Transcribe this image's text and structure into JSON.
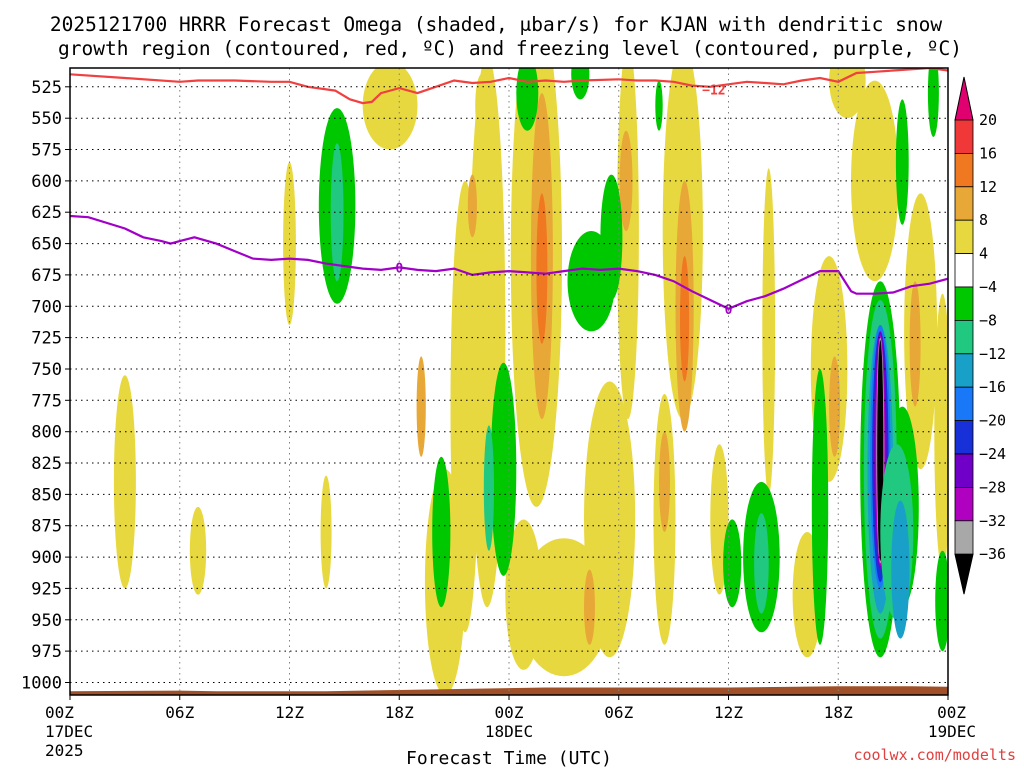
{
  "chart_data": {
    "type": "heatmap",
    "title_lines": [
      "2025121700 HRRR Forecast Omega (shaded, μbar/s) for KJAN with dendritic snow",
      "growth region (contoured, red, ºC) and freezing level (contoured, purple, ºC)"
    ],
    "xlabel": "Forecast Time (UTC)",
    "credit": "coolwx.com/modelts",
    "y_axis": {
      "units": "hPa",
      "reversed": true,
      "range": [
        510,
        1010
      ],
      "ticks": [
        525,
        550,
        575,
        600,
        625,
        650,
        675,
        700,
        725,
        750,
        775,
        800,
        825,
        850,
        875,
        900,
        925,
        950,
        975,
        1000
      ]
    },
    "x_axis": {
      "units": "forecast hour",
      "range": [
        0,
        48
      ],
      "ticks": [
        {
          "hour": 0,
          "label": "00Z",
          "date": "17DEC",
          "year": "2025"
        },
        {
          "hour": 6,
          "label": "06Z"
        },
        {
          "hour": 12,
          "label": "12Z"
        },
        {
          "hour": 18,
          "label": "18Z"
        },
        {
          "hour": 24,
          "label": "00Z",
          "date": "18DEC"
        },
        {
          "hour": 30,
          "label": "06Z"
        },
        {
          "hour": 36,
          "label": "12Z"
        },
        {
          "hour": 42,
          "label": "18Z"
        },
        {
          "hour": 48,
          "label": "00Z",
          "date": "19DEC"
        }
      ]
    },
    "colorbar": {
      "labels": [
        "20",
        "16",
        "12",
        "8",
        "4",
        "−4",
        "−8",
        "−12",
        "−16",
        "−20",
        "−24",
        "−28",
        "−32",
        "−36"
      ],
      "colors": [
        "#e00070",
        "#f03838",
        "#f07820",
        "#e8a838",
        "#e8d840",
        "#ffffff",
        "#00c800",
        "#20c880",
        "#18a0c8",
        "#1878f8",
        "#1830d8",
        "#7000c8",
        "#b000c0",
        "#a8a8a8",
        "#000000"
      ]
    },
    "contours": [
      {
        "name": "dgz-top",
        "color": "#f04040",
        "label": "−12",
        "label_hour": 35.2,
        "label_level": 527,
        "points": [
          [
            0,
            515
          ],
          [
            3,
            518
          ],
          [
            6,
            521
          ],
          [
            7,
            520
          ],
          [
            9,
            520
          ],
          [
            11,
            521
          ],
          [
            12,
            521
          ],
          [
            13,
            525
          ],
          [
            14.5,
            528
          ],
          [
            15.3,
            535
          ],
          [
            16,
            538
          ],
          [
            16.5,
            537
          ],
          [
            17,
            530
          ],
          [
            18,
            526
          ],
          [
            19,
            530
          ],
          [
            20,
            525
          ],
          [
            21,
            520
          ],
          [
            22,
            522
          ],
          [
            23,
            521
          ],
          [
            24,
            518
          ],
          [
            25,
            521
          ],
          [
            26,
            520
          ],
          [
            27,
            521
          ],
          [
            28,
            520
          ],
          [
            30,
            519
          ],
          [
            31,
            520
          ],
          [
            32,
            520
          ],
          [
            33,
            521
          ],
          [
            34,
            524
          ],
          [
            35,
            525
          ],
          [
            36,
            523
          ],
          [
            37,
            521
          ],
          [
            38,
            522
          ],
          [
            39,
            523
          ],
          [
            40,
            520
          ],
          [
            41,
            518
          ],
          [
            42,
            521
          ],
          [
            43,
            514
          ],
          [
            44,
            513
          ],
          [
            45,
            512
          ],
          [
            47,
            510
          ],
          [
            48,
            512
          ]
        ]
      },
      {
        "name": "freezing-level",
        "color": "#a000c8",
        "label": "0",
        "label_hour": 18,
        "label_level": 669,
        "points": [
          [
            0,
            628
          ],
          [
            1,
            629
          ],
          [
            3,
            638
          ],
          [
            4,
            645
          ],
          [
            5,
            648
          ],
          [
            5.5,
            650
          ],
          [
            6,
            648
          ],
          [
            6.8,
            645
          ],
          [
            8,
            650
          ],
          [
            9,
            656
          ],
          [
            10,
            662
          ],
          [
            11,
            663
          ],
          [
            12,
            662
          ],
          [
            13,
            663
          ],
          [
            14,
            666
          ],
          [
            15,
            668
          ],
          [
            16,
            670
          ],
          [
            17,
            671
          ],
          [
            18,
            669
          ],
          [
            19,
            671
          ],
          [
            20,
            672
          ],
          [
            21,
            670
          ],
          [
            22,
            675
          ],
          [
            23,
            673
          ],
          [
            24,
            672
          ],
          [
            25,
            673
          ],
          [
            26,
            674
          ],
          [
            27,
            672
          ],
          [
            28,
            670
          ],
          [
            29,
            671
          ],
          [
            30,
            670
          ],
          [
            31,
            672
          ],
          [
            32,
            675
          ],
          [
            33,
            680
          ],
          [
            34,
            688
          ],
          [
            35,
            695
          ],
          [
            36,
            702
          ],
          [
            37,
            696
          ],
          [
            38,
            692
          ],
          [
            39,
            686
          ],
          [
            40,
            679
          ],
          [
            41,
            672
          ],
          [
            42,
            672
          ],
          [
            42.7,
            688
          ],
          [
            43,
            690
          ],
          [
            44,
            690
          ],
          [
            45,
            689
          ],
          [
            46,
            684
          ],
          [
            47,
            682
          ],
          [
            48,
            678
          ]
        ]
      }
    ]
  }
}
